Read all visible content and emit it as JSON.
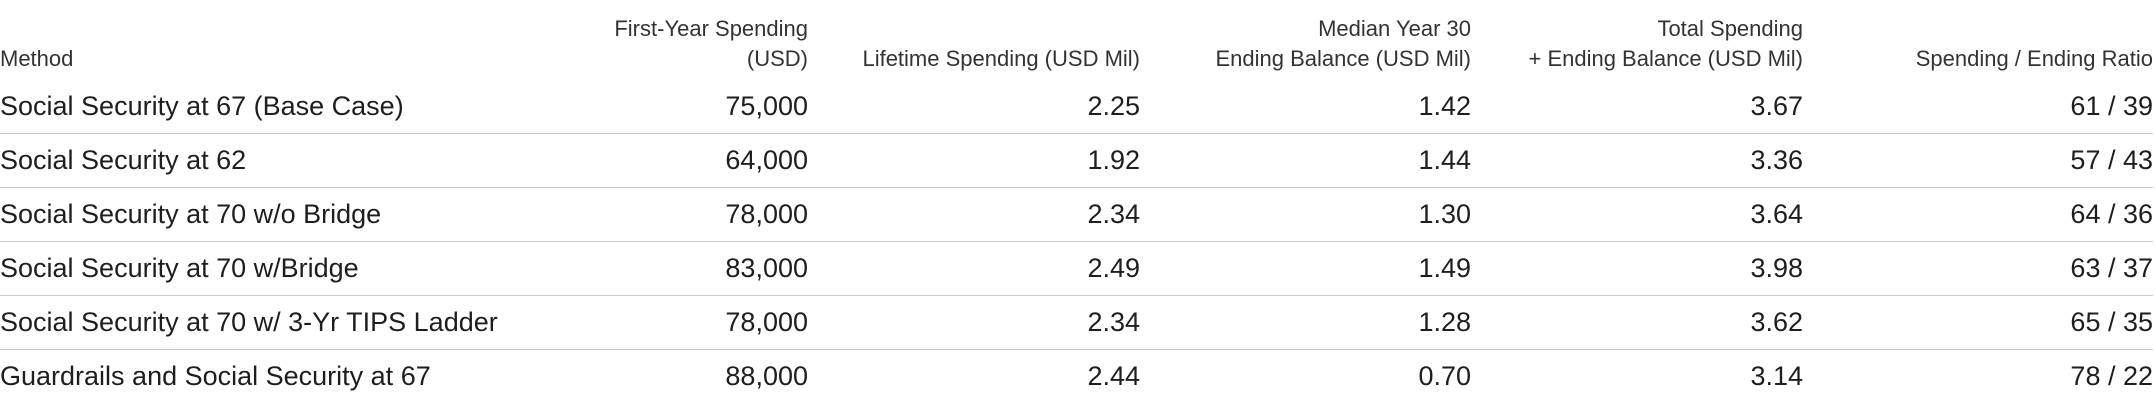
{
  "table": {
    "header": [
      [
        "Method"
      ],
      [
        "First-Year Spending (USD)"
      ],
      [
        "Lifetime Spending (USD Mil)"
      ],
      [
        "Median Year 30",
        "Ending Balance (USD Mil)"
      ],
      [
        "Total Spending",
        "+ Ending Balance (USD Mil)"
      ],
      [
        "Spending / Ending Ratio"
      ]
    ],
    "rows": [
      [
        "Social Security at 67 (Base Case)",
        "75,000",
        "2.25",
        "1.42",
        "3.67",
        "61 / 39"
      ],
      [
        "Social Security at 62",
        "64,000",
        "1.92",
        "1.44",
        "3.36",
        "57 / 43"
      ],
      [
        "Social Security at 70 w/o Bridge",
        "78,000",
        "2.34",
        "1.30",
        "3.64",
        "64 / 36"
      ],
      [
        "Social Security at 70 w/Bridge",
        "83,000",
        "2.49",
        "1.49",
        "3.98",
        "63 / 37"
      ],
      [
        "Social Security at 70 w/ 3-Yr TIPS Ladder",
        "78,000",
        "2.34",
        "1.28",
        "3.62",
        "65 / 35"
      ],
      [
        "Guardrails and Social Security at 67",
        "88,000",
        "2.44",
        "0.70",
        "3.14",
        "78 / 22"
      ]
    ]
  }
}
